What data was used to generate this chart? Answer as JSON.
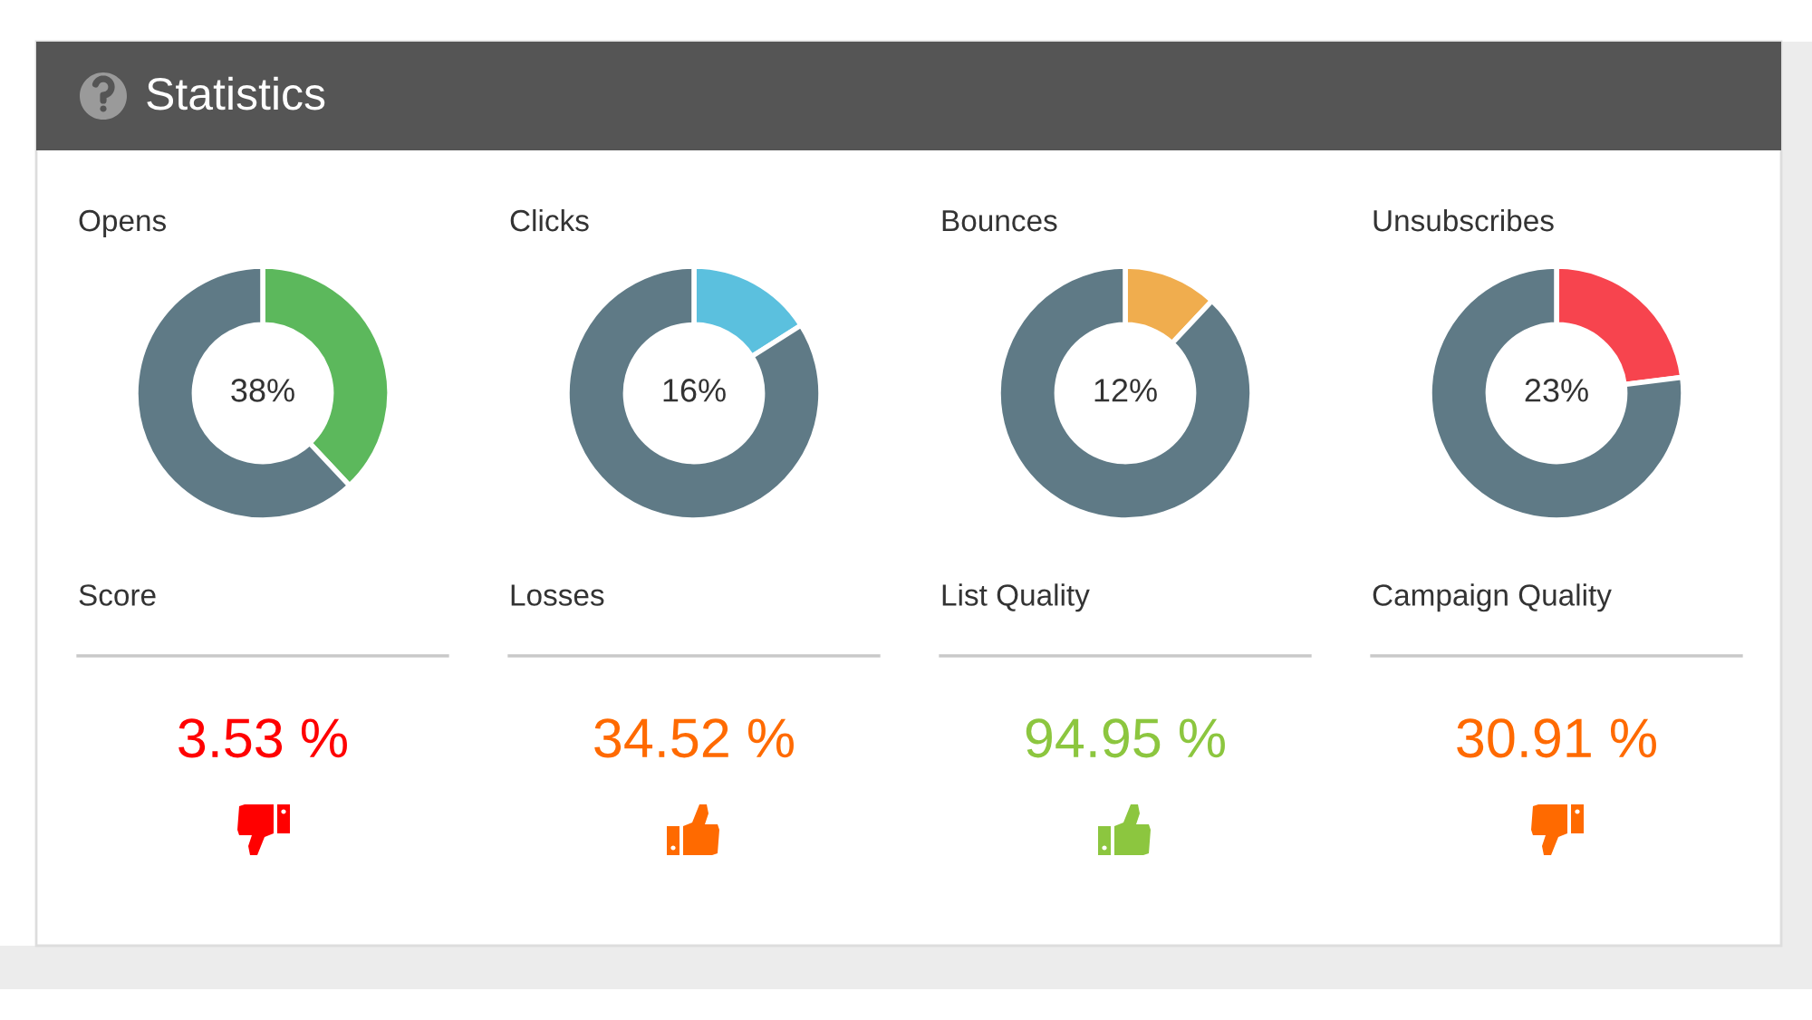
{
  "chart_data": [
    {
      "type": "other",
      "title": "Statistics"
    },
    {
      "type": "donut",
      "title": "Opens",
      "categories": [
        null,
        null
      ],
      "values": [
        38,
        62
      ],
      "colors": [
        "#5cb85c",
        "#5f7a86"
      ],
      "annotations": [
        "38%"
      ]
    },
    {
      "type": "donut",
      "title": "Clicks",
      "categories": [
        null,
        null
      ],
      "values": [
        16,
        84
      ],
      "colors": [
        "#5bc0de",
        "#5f7a86"
      ],
      "annotations": [
        "16%"
      ]
    },
    {
      "type": "donut",
      "title": "Bounces",
      "categories": [
        null,
        null
      ],
      "values": [
        12,
        88
      ],
      "colors": [
        "#f0ad4e",
        "#5f7a86"
      ],
      "annotations": [
        "12%"
      ]
    },
    {
      "type": "donut",
      "title": "Unsubscribes",
      "categories": [
        null,
        null
      ],
      "values": [
        23,
        77
      ],
      "colors": [
        "#f7444e",
        "#5f7a86"
      ],
      "annotations": [
        "23%"
      ]
    },
    {
      "type": "other",
      "title": "Score",
      "annotations": [
        "3.53 %"
      ],
      "color": "#ff0000"
    },
    {
      "type": "other",
      "title": "Losses",
      "annotations": [
        "34.52 %"
      ],
      "color": "#ff6a00"
    },
    {
      "type": "other",
      "title": "List Quality",
      "annotations": [
        "94.95 %"
      ],
      "color": "#8cc63f"
    },
    {
      "type": "other",
      "title": "Campaign Quality",
      "annotations": [
        "30.91 %"
      ],
      "color": "#ff6a00"
    }
  ]
}
